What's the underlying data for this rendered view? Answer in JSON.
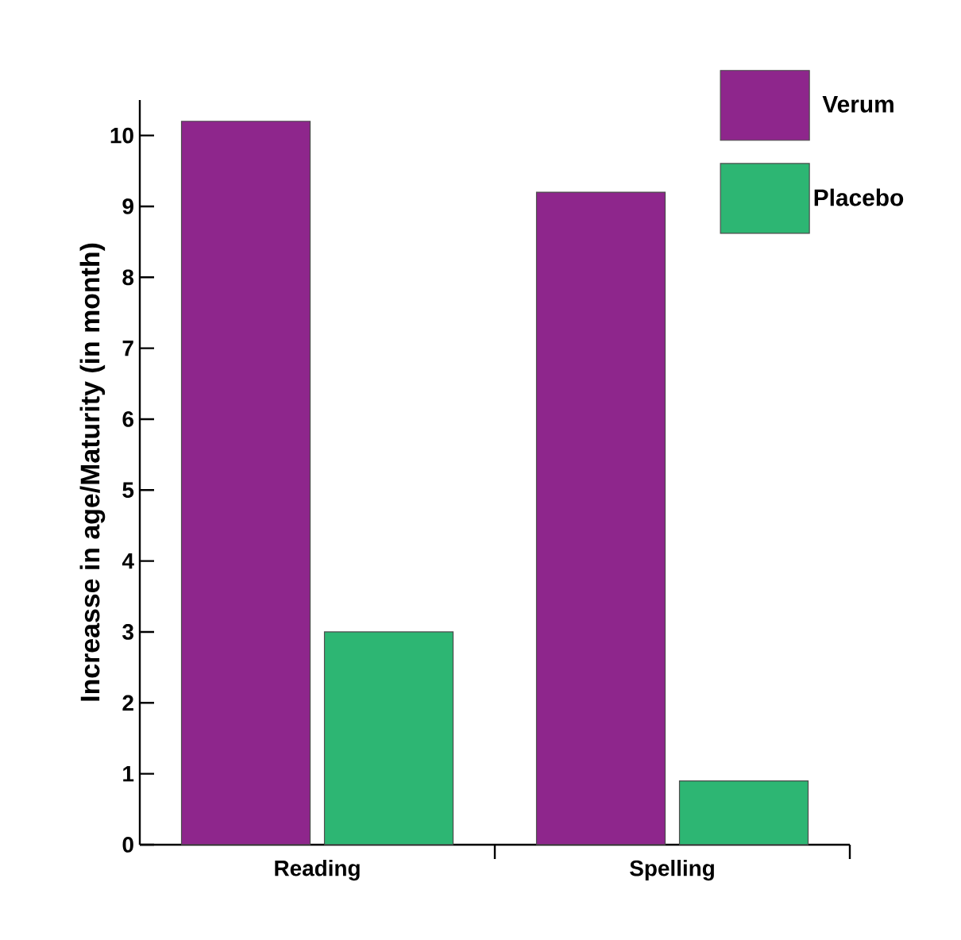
{
  "chart_data": {
    "type": "bar",
    "ylabel": "Increasse in age/Maturity (in month)",
    "categories": [
      "Reading",
      "Spelling"
    ],
    "series": [
      {
        "name": "Verum",
        "color": "#8e268c",
        "values": [
          10.2,
          9.2
        ]
      },
      {
        "name": "Placebo",
        "color": "#2db673",
        "values": [
          3.0,
          0.9
        ]
      }
    ],
    "ylim": [
      0,
      10.5
    ],
    "yticks": [
      0,
      1,
      2,
      3,
      4,
      5,
      6,
      7,
      8,
      9,
      10
    ],
    "legend": "top right"
  }
}
